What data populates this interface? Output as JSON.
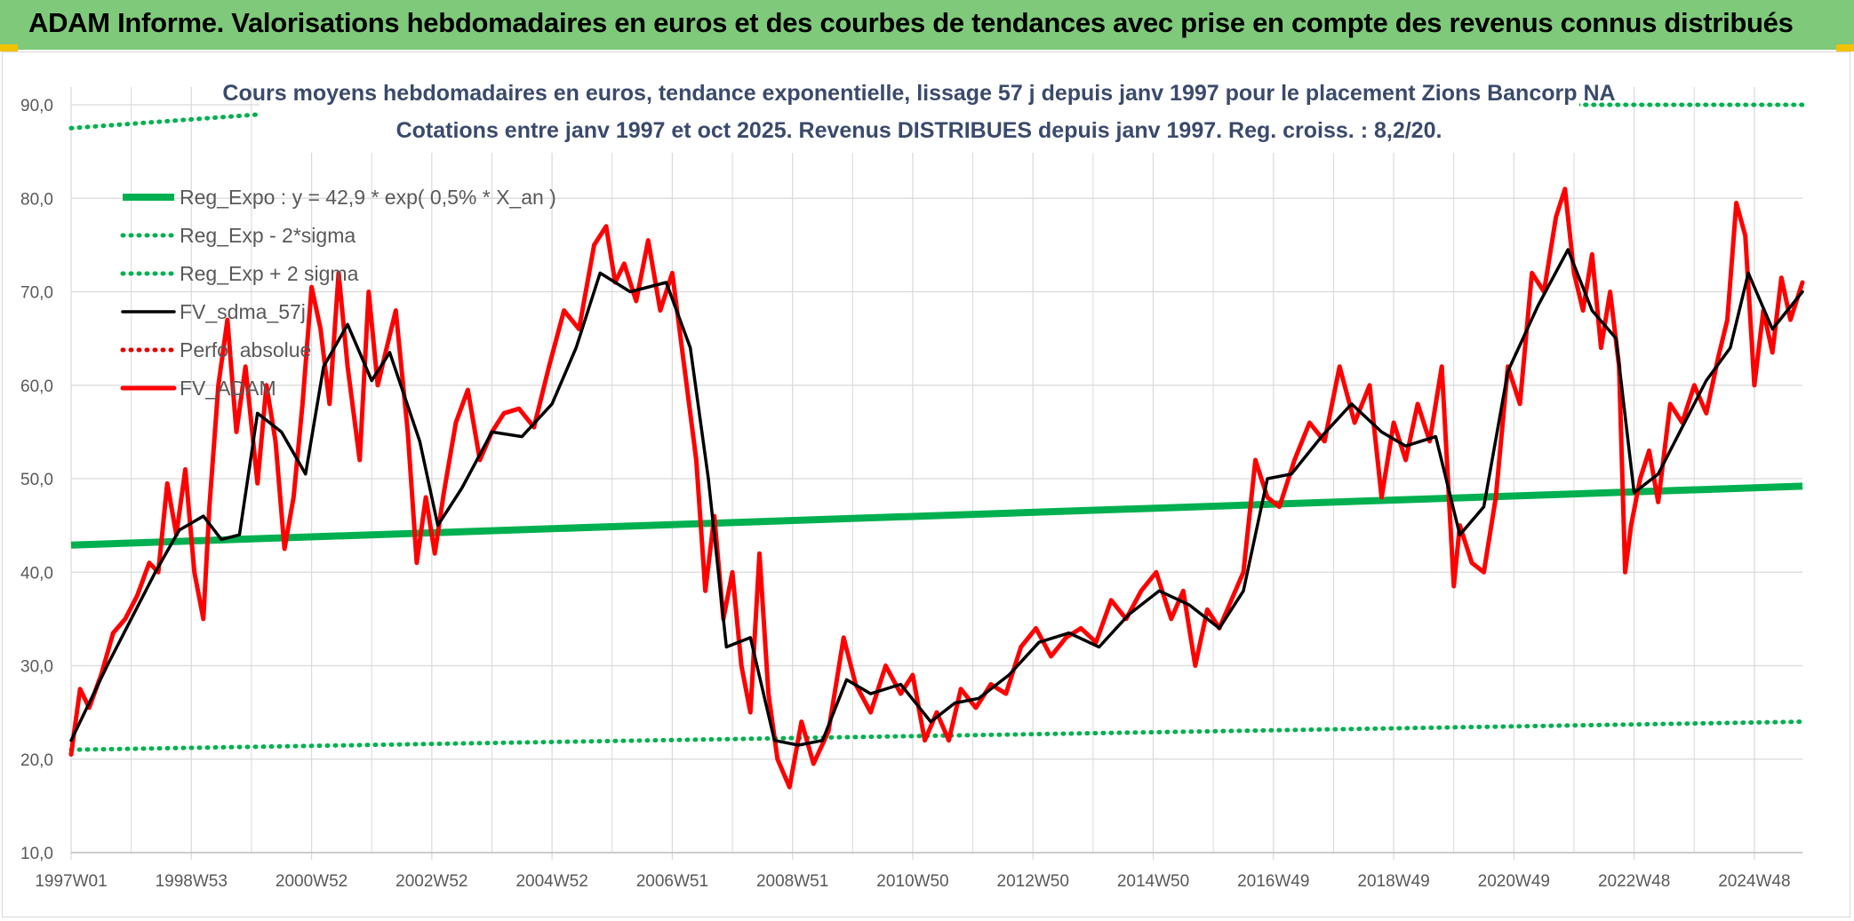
{
  "banner": {
    "title": "ADAM Informe. Valorisations hebdomadaires en euros et des courbes de tendances avec prise en compte des revenus connus distribués"
  },
  "colors": {
    "banner_bg": "#7ec97a",
    "reg_expo": "#00b050",
    "band": "#00b050",
    "fv_sdma": "#000000",
    "perfo": "#e00000",
    "fv_adam": "#ff0000",
    "grid": "#d9d9d9"
  },
  "chart_data": {
    "type": "line",
    "title": "Cours moyens hebdomadaires en euros, tendance exponentielle, lissage 57 j depuis janv 1997 pour le placement Zions Bancorp NA",
    "subtitle": "Cotations entre janv 1997 et oct 2025. Revenus DISTRIBUES depuis janv 1997. Reg. croiss. : 8,2/20.",
    "xlabel": "",
    "ylabel": "",
    "ylim": [
      10,
      90
    ],
    "y_ticks": [
      "10,0",
      "20,0",
      "30,0",
      "40,0",
      "50,0",
      "60,0",
      "70,0",
      "80,0",
      "90,0"
    ],
    "x_range": [
      1997.0,
      2025.8
    ],
    "x_ticks": [
      "1997W01",
      "1998W53",
      "2000W52",
      "2002W52",
      "2004W52",
      "2006W51",
      "2008W51",
      "2010W50",
      "2012W50",
      "2014W50",
      "2016W49",
      "2018W49",
      "2020W49",
      "2022W48",
      "2024W48"
    ],
    "x_tick_years": [
      1997.0,
      1999.0,
      2001.0,
      2003.0,
      2005.0,
      2007.0,
      2009.0,
      2011.0,
      2013.0,
      2015.0,
      2017.0,
      2019.0,
      2021.0,
      2023.0,
      2025.0
    ],
    "grid": true,
    "legend_position": "top-left",
    "series": [
      {
        "name": "Reg_Expo : y = 42,9 * exp( 0,5% *  X_an )",
        "style": "solid-thick",
        "color": "#00b050",
        "x": [
          1997.0,
          2025.8
        ],
        "y": [
          42.9,
          49.2
        ]
      },
      {
        "name": "Reg_Exp - 2*sigma",
        "style": "dotted",
        "color": "#00b050",
        "x": [
          1997.0,
          2025.8
        ],
        "y": [
          21.0,
          24.0
        ]
      },
      {
        "name": "Reg_Exp + 2 sigma",
        "style": "dotted",
        "color": "#00b050",
        "x": [
          1997.0,
          2000.2,
          2000.3,
          2022.1,
          2022.2,
          2025.8
        ],
        "y": [
          87.5,
          89.0,
          90.0,
          90.0,
          90.0,
          90.0
        ]
      },
      {
        "name": "FV_sdma_57j",
        "style": "solid",
        "color": "#000000",
        "x": [
          1997.0,
          1997.3,
          1997.6,
          1998.0,
          1998.4,
          1998.8,
          1999.2,
          1999.5,
          1999.8,
          2000.1,
          2000.5,
          2000.9,
          2001.2,
          2001.6,
          2002.0,
          2002.3,
          2002.8,
          2003.1,
          2003.5,
          2004.0,
          2004.5,
          2005.0,
          2005.4,
          2005.8,
          2006.3,
          2006.9,
          2007.3,
          2007.6,
          2007.9,
          2008.3,
          2008.7,
          2009.1,
          2009.5,
          2009.9,
          2010.3,
          2010.8,
          2011.3,
          2011.7,
          2012.1,
          2012.6,
          2013.1,
          2013.6,
          2014.1,
          2014.6,
          2015.1,
          2015.6,
          2016.1,
          2016.5,
          2016.9,
          2017.3,
          2017.8,
          2018.3,
          2018.8,
          2019.2,
          2019.7,
          2020.1,
          2020.5,
          2020.9,
          2021.4,
          2021.9,
          2022.3,
          2022.7,
          2023.0,
          2023.4,
          2023.8,
          2024.2,
          2024.6,
          2024.9,
          2025.3,
          2025.8
        ],
        "y": [
          22.0,
          26.0,
          30.0,
          35.0,
          40.0,
          44.5,
          46.0,
          43.5,
          44.0,
          57.0,
          55.0,
          50.5,
          62.0,
          66.5,
          60.5,
          63.5,
          54.0,
          45.0,
          49.0,
          55.0,
          54.5,
          58.0,
          64.0,
          72.0,
          70.0,
          71.0,
          64.0,
          50.0,
          32.0,
          33.0,
          22.0,
          21.5,
          22.0,
          28.5,
          27.0,
          28.0,
          24.0,
          26.0,
          26.5,
          29.0,
          32.5,
          33.5,
          32.0,
          35.5,
          38.0,
          36.5,
          34.0,
          38.0,
          50.0,
          50.5,
          54.5,
          58.0,
          55.0,
          53.5,
          54.5,
          44.0,
          47.0,
          61.5,
          68.5,
          74.5,
          68.0,
          65.0,
          48.5,
          50.5,
          55.5,
          60.5,
          64.0,
          72.0,
          66.0,
          70.0
        ]
      },
      {
        "name": "Perfo. absolue",
        "style": "dotted",
        "color": "#e00000",
        "x": [],
        "y": []
      },
      {
        "name": "FV_ADAM",
        "style": "solid-thick",
        "color": "#ff0000",
        "x": [
          1997.0,
          1997.15,
          1997.3,
          1997.5,
          1997.7,
          1997.9,
          1998.1,
          1998.3,
          1998.45,
          1998.6,
          1998.75,
          1998.9,
          1999.05,
          1999.2,
          1999.3,
          1999.45,
          1999.6,
          1999.75,
          1999.9,
          2000.1,
          2000.25,
          2000.4,
          2000.55,
          2000.7,
          2000.85,
          2001.0,
          2001.15,
          2001.3,
          2001.45,
          2001.6,
          2001.8,
          2001.95,
          2002.1,
          2002.25,
          2002.4,
          2002.6,
          2002.75,
          2002.9,
          2003.05,
          2003.2,
          2003.4,
          2003.6,
          2003.8,
          2004.0,
          2004.2,
          2004.45,
          2004.7,
          2004.95,
          2005.2,
          2005.45,
          2005.7,
          2005.9,
          2006.05,
          2006.2,
          2006.4,
          2006.6,
          2006.8,
          2007.0,
          2007.2,
          2007.4,
          2007.55,
          2007.7,
          2007.85,
          2008.0,
          2008.15,
          2008.3,
          2008.45,
          2008.6,
          2008.75,
          2008.95,
          2009.15,
          2009.35,
          2009.6,
          2009.85,
          2010.05,
          2010.3,
          2010.55,
          2010.8,
          2011.0,
          2011.2,
          2011.4,
          2011.6,
          2011.8,
          2012.05,
          2012.3,
          2012.55,
          2012.8,
          2013.05,
          2013.3,
          2013.55,
          2013.8,
          2014.05,
          2014.3,
          2014.55,
          2014.8,
          2015.05,
          2015.3,
          2015.5,
          2015.7,
          2015.9,
          2016.1,
          2016.3,
          2016.5,
          2016.7,
          2016.9,
          2017.1,
          2017.35,
          2017.6,
          2017.85,
          2018.1,
          2018.35,
          2018.6,
          2018.8,
          2019.0,
          2019.2,
          2019.4,
          2019.6,
          2019.8,
          2020.0,
          2020.1,
          2020.3,
          2020.5,
          2020.7,
          2020.9,
          2021.1,
          2021.3,
          2021.5,
          2021.7,
          2021.85,
          2022.0,
          2022.15,
          2022.3,
          2022.45,
          2022.6,
          2022.75,
          2022.85,
          2022.95,
          2023.1,
          2023.25,
          2023.4,
          2023.6,
          2023.8,
          2024.0,
          2024.2,
          2024.4,
          2024.55,
          2024.7,
          2024.85,
          2025.0,
          2025.15,
          2025.3,
          2025.45,
          2025.6,
          2025.8
        ],
        "y": [
          20.5,
          27.5,
          25.5,
          29.0,
          33.5,
          35.0,
          37.5,
          41.0,
          40.0,
          49.5,
          44.0,
          51.0,
          40.0,
          35.0,
          47.0,
          60.0,
          67.0,
          55.0,
          62.0,
          49.5,
          60.0,
          54.0,
          42.5,
          48.0,
          58.0,
          70.5,
          66.0,
          58.0,
          72.0,
          62.0,
          52.0,
          70.0,
          60.0,
          64.0,
          68.0,
          55.0,
          41.0,
          48.0,
          42.0,
          48.5,
          56.0,
          59.5,
          52.0,
          55.0,
          57.0,
          57.5,
          55.5,
          62.0,
          68.0,
          66.0,
          75.0,
          77.0,
          71.0,
          73.0,
          69.0,
          75.5,
          68.0,
          72.0,
          62.0,
          52.0,
          38.0,
          46.0,
          35.0,
          40.0,
          30.0,
          25.0,
          42.0,
          27.0,
          20.0,
          17.0,
          24.0,
          19.5,
          23.0,
          33.0,
          28.0,
          25.0,
          30.0,
          27.0,
          29.0,
          22.0,
          25.0,
          22.0,
          27.5,
          25.5,
          28.0,
          27.0,
          32.0,
          34.0,
          31.0,
          33.0,
          34.0,
          32.5,
          37.0,
          35.0,
          38.0,
          40.0,
          35.0,
          38.0,
          30.0,
          36.0,
          34.0,
          37.0,
          40.0,
          52.0,
          48.0,
          47.0,
          52.0,
          56.0,
          54.0,
          62.0,
          56.0,
          60.0,
          48.0,
          56.0,
          52.0,
          58.0,
          54.0,
          62.0,
          38.5,
          45.0,
          41.0,
          40.0,
          48.0,
          62.0,
          58.0,
          72.0,
          70.0,
          78.0,
          81.0,
          72.0,
          68.0,
          74.0,
          64.0,
          70.0,
          62.0,
          40.0,
          45.0,
          50.0,
          53.0,
          47.5,
          58.0,
          56.0,
          60.0,
          57.0,
          63.0,
          67.0,
          79.5,
          76.0,
          60.0,
          68.0,
          63.5,
          71.5,
          67.0,
          71.0
        ]
      }
    ]
  }
}
